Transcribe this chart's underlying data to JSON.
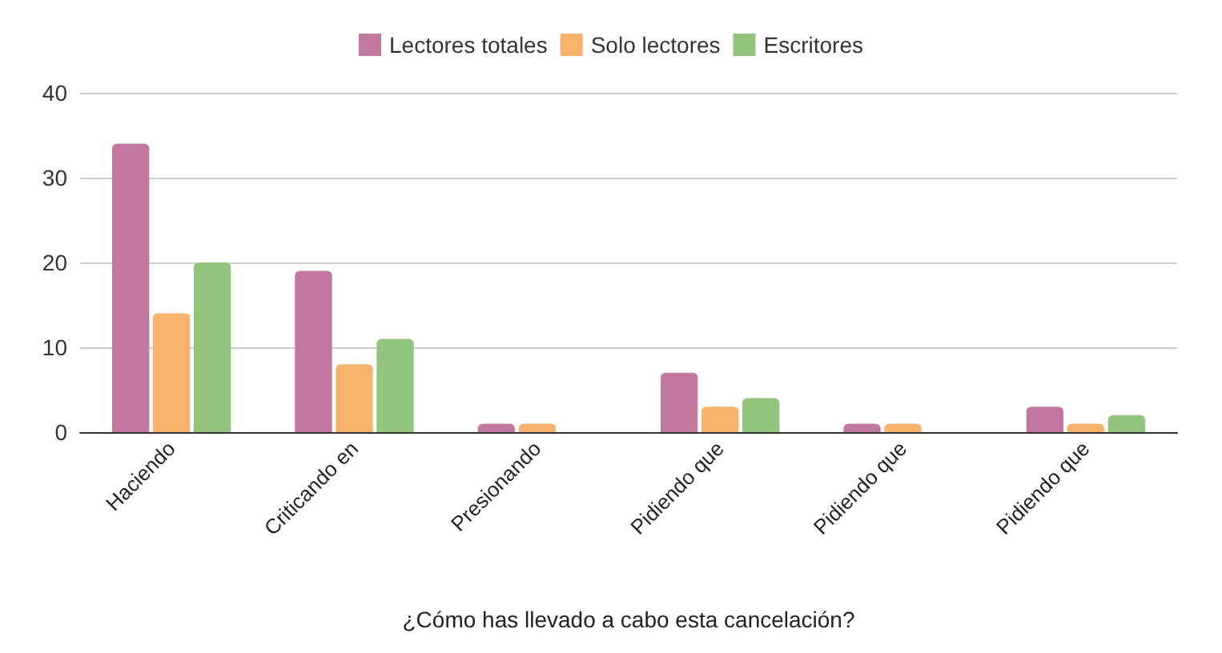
{
  "chart_data": {
    "type": "bar",
    "xlabel": "¿Cómo has llevado a cabo esta cancelación?",
    "categories": [
      "Haciendo",
      "Criticando en",
      "Presionando",
      "Pidiendo que",
      "Pidiendo que",
      "Pidiendo que"
    ],
    "series": [
      {
        "name": "Lectores totales",
        "color": "#c2779f",
        "values": [
          34,
          19,
          1,
          7,
          1,
          3
        ]
      },
      {
        "name": "Solo lectores",
        "color": "#f6b26b",
        "values": [
          14,
          8,
          1,
          3,
          1,
          1
        ]
      },
      {
        "name": "Escritores",
        "color": "#93c47d",
        "values": [
          20,
          11,
          0,
          4,
          0,
          2
        ]
      }
    ],
    "ylim": [
      0,
      40
    ],
    "yticks": [
      0,
      10,
      20,
      30,
      40
    ],
    "grid": "y",
    "legend": "top"
  }
}
